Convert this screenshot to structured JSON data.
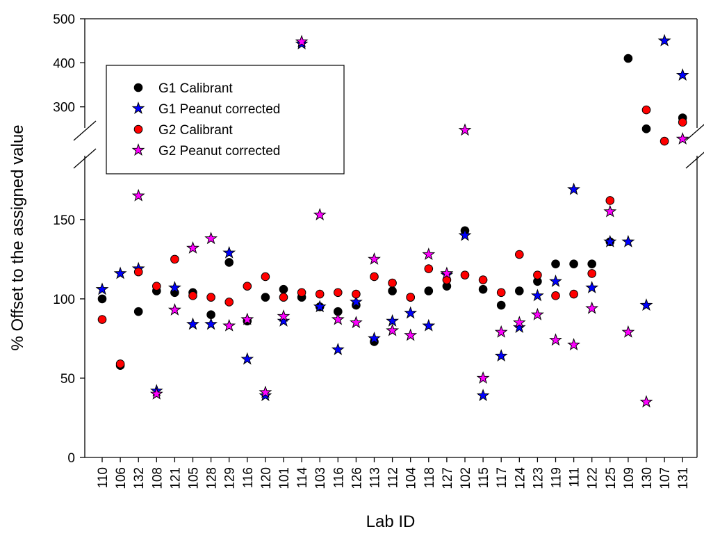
{
  "chart_data": {
    "type": "scatter",
    "xlabel": "Lab ID",
    "ylabel": "% Offset to the assigned value",
    "categories": [
      "110",
      "106",
      "132",
      "108",
      "121",
      "105",
      "128",
      "129",
      "116",
      "120",
      "101",
      "114",
      "103",
      "116",
      "126",
      "113",
      "112",
      "104",
      "118",
      "127",
      "102",
      "115",
      "117",
      "124",
      "123",
      "119",
      "111",
      "122",
      "125",
      "109",
      "130",
      "107",
      "131"
    ],
    "y_axis": {
      "break": true,
      "lower_range": [
        0,
        185
      ],
      "lower_ticks": [
        0,
        50,
        100,
        150
      ],
      "upper_range": [
        230,
        500
      ],
      "upper_ticks": [
        300,
        400,
        500
      ]
    },
    "legend_position": "top-left",
    "series": [
      {
        "name": "G1 Calibrant",
        "marker": "circle",
        "color": "#000000",
        "values": [
          100,
          58,
          92,
          105,
          104,
          104,
          90,
          123,
          86,
          101,
          106,
          101,
          95,
          92,
          96,
          73,
          105,
          101,
          105,
          108,
          143,
          106,
          96,
          105,
          111,
          122,
          122,
          122,
          136,
          410,
          250,
          null,
          275
        ]
      },
      {
        "name": "G1 Peanut corrected",
        "marker": "star",
        "color": "#0000ff",
        "values": [
          106,
          116,
          119,
          42,
          107,
          84,
          84,
          129,
          62,
          39,
          86,
          443,
          95,
          68,
          98,
          75,
          86,
          91,
          83,
          115,
          140,
          39,
          64,
          82,
          102,
          111,
          169,
          107,
          136,
          136,
          96,
          450,
          372
        ]
      },
      {
        "name": "G2 Calibrant",
        "marker": "circle",
        "color": "#ff0000",
        "values": [
          87,
          59,
          117,
          108,
          125,
          102,
          101,
          98,
          108,
          114,
          101,
          104,
          103,
          104,
          103,
          114,
          110,
          101,
          119,
          112,
          115,
          112,
          104,
          128,
          115,
          102,
          103,
          116,
          162,
          null,
          293,
          222,
          265
        ]
      },
      {
        "name": "G2 Peanut corrected",
        "marker": "star",
        "color": "#ff00ff",
        "values": [
          null,
          null,
          165,
          40,
          93,
          132,
          138,
          83,
          87,
          41,
          89,
          448,
          153,
          87,
          85,
          125,
          80,
          77,
          128,
          116,
          247,
          50,
          79,
          85,
          90,
          74,
          71,
          94,
          155,
          79,
          35,
          null,
          227
        ]
      }
    ]
  }
}
